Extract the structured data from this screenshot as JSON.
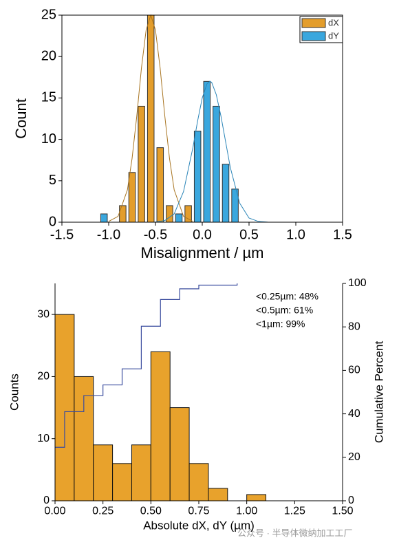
{
  "chart_data": [
    {
      "type": "histogram",
      "xlabel": "Misalignment / µm",
      "ylabel": "Count",
      "xlim": [
        -1.5,
        1.5
      ],
      "xticks": [
        -1.5,
        {
          "value": -1,
          "label": "-1.0"
        },
        -0.5,
        {
          "value": 0,
          "label": "0.0"
        },
        0.5,
        {
          "value": 1,
          "label": "1.0"
        },
        1.5
      ],
      "ylim": [
        0,
        25
      ],
      "yticks": [
        0,
        5,
        10,
        15,
        20,
        25
      ],
      "legend": "upper right",
      "series": [
        {
          "name": "dX",
          "color": "#e39d2b",
          "bins": [
            -0.9,
            -0.8,
            -0.7,
            -0.6,
            -0.5,
            -0.4,
            -0.3,
            -0.2,
            -0.1
          ],
          "values": [
            2,
            6,
            14,
            25,
            9,
            2,
            0,
            2
          ],
          "fit": {
            "color": "#a87420",
            "x": [
              -1.0,
              -0.9,
              -0.8,
              -0.75,
              -0.7,
              -0.65,
              -0.6,
              -0.55,
              -0.5,
              -0.45,
              -0.4,
              -0.35,
              -0.3,
              -0.2,
              -0.1
            ],
            "values": [
              0.1,
              0.7,
              3.9,
              7.7,
              12.8,
              18.6,
              23.2,
              25,
              23.2,
              18.6,
              12.8,
              7.7,
              3.9,
              0.7,
              0.1
            ]
          }
        },
        {
          "name": "dY",
          "color": "#3aa7de",
          "bins": [
            -1.1,
            -1.0,
            -0.9,
            -0.8,
            -0.7,
            -0.6,
            -0.5,
            -0.4,
            -0.3,
            -0.2,
            -0.1,
            0.0,
            0.1,
            0.2,
            0.3,
            0.4
          ],
          "values": [
            1,
            0,
            0,
            0,
            0,
            0,
            0,
            0,
            1,
            0,
            11,
            17,
            14,
            7,
            4
          ],
          "fit": {
            "color": "#2a85b8",
            "x": [
              -0.5,
              -0.4,
              -0.3,
              -0.2,
              -0.1,
              -0.05,
              0.0,
              0.05,
              0.08,
              0.1,
              0.15,
              0.2,
              0.25,
              0.3,
              0.4,
              0.5,
              0.6,
              0.7
            ],
            "values": [
              0.02,
              0.2,
              1.0,
              3.7,
              9.0,
              12.2,
              15.0,
              16.7,
              17,
              16.9,
              15.4,
              12.8,
              9.7,
              6.6,
              2.3,
              0.5,
              0.09,
              0.01
            ]
          }
        }
      ]
    },
    {
      "type": "histogram",
      "xlabel": "Absolute dX, dY (µm)",
      "ylabel": "Counts",
      "y2label": "Cumulative Percent",
      "xlim": [
        0,
        1.5
      ],
      "xticks": [
        {
          "value": 0,
          "label": "0.00"
        },
        0.25,
        {
          "value": 0.5,
          "label": "0.50"
        },
        0.75,
        {
          "value": 1,
          "label": "1.00"
        },
        1.25,
        {
          "value": 1.5,
          "label": "1.50"
        }
      ],
      "ylim": [
        0,
        35
      ],
      "yticks": [
        0,
        10,
        20,
        30
      ],
      "y2lim": [
        0,
        100
      ],
      "y2ticks": [
        0,
        20,
        40,
        60,
        80,
        100
      ],
      "series": [
        {
          "color": "#e8a22c",
          "bins": [
            0,
            0.1,
            0.2,
            0.3,
            0.4,
            0.5,
            0.6,
            0.7,
            0.8,
            0.9,
            1.0,
            1.1
          ],
          "values": [
            30,
            20,
            9,
            6,
            9,
            24,
            15,
            6,
            2,
            0,
            1
          ]
        },
        {
          "type": "step",
          "axis": "y2",
          "color": "#3a4c9e",
          "x": [
            0,
            0.05,
            0.15,
            0.25,
            0.35,
            0.45,
            0.55,
            0.65,
            0.75,
            0.85,
            0.95
          ],
          "values": [
            24.6,
            41,
            48.4,
            53.3,
            60.7,
            80.3,
            92.6,
            97.5,
            99.2,
            99.2,
            100
          ]
        }
      ],
      "annotations": [
        "<0.25µm: 48%",
        "<0.5µm: 61%",
        "<1µm: 99%"
      ]
    }
  ],
  "watermark": "公众号 · 半导体微纳加工工厂"
}
